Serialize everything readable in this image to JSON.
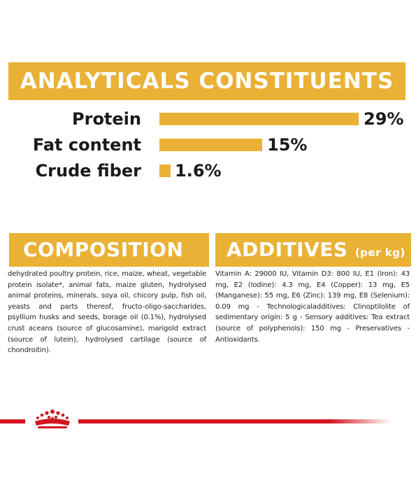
{
  "analytics": {
    "title": "ANALYTICALS CONSTITUENTS",
    "rows": [
      {
        "label": "Protein",
        "value": "29%",
        "percent": 29
      },
      {
        "label": "Fat content",
        "value": "15%",
        "percent": 15
      },
      {
        "label": "Crude fiber",
        "value": "1.6%",
        "percent": 1.6
      }
    ]
  },
  "composition": {
    "title": "COMPOSITION",
    "text": "dehydrated poultry protein, rice, maize, wheat, vegetable protein isolate*, animal fats, maize gluten, hydrolysed animal proteins, minerals, soya oil, chicory pulp, fish oil, yeasts and parts thereof, fructo-oligo-saccharides, psyllium husks and seeds, borage oil (0.1%), hydrolysed crust aceans (source of glucosamine), marigold extract (source of lutein), hydrolysed cartilage (source of chondroitin)."
  },
  "additives": {
    "title": "ADDITIVES",
    "subtitle": "(per kg)",
    "text": "Vitamin A: 29000 IU, Vitamin D3: 800 IU, E1 (Iron): 43 mg, E2 (Iodine): 4.3 mg, E4 (Copper): 13 mg, E5 (Manganese): 55 mg, E6 (Zinc): 139 mg, E8 (Selenium): 0.09 mg - Technologicaladditives: Clinoptilolite of sedimentary origin: 5 g - Sensory additives: Tea extract (source of polyphenols): 150 mg - Preservatives - Antioxidants."
  },
  "colors": {
    "accent": "#e9b135",
    "brand_red": "#d31520"
  },
  "icons": {
    "logo": "royal-canin-crown-icon"
  }
}
